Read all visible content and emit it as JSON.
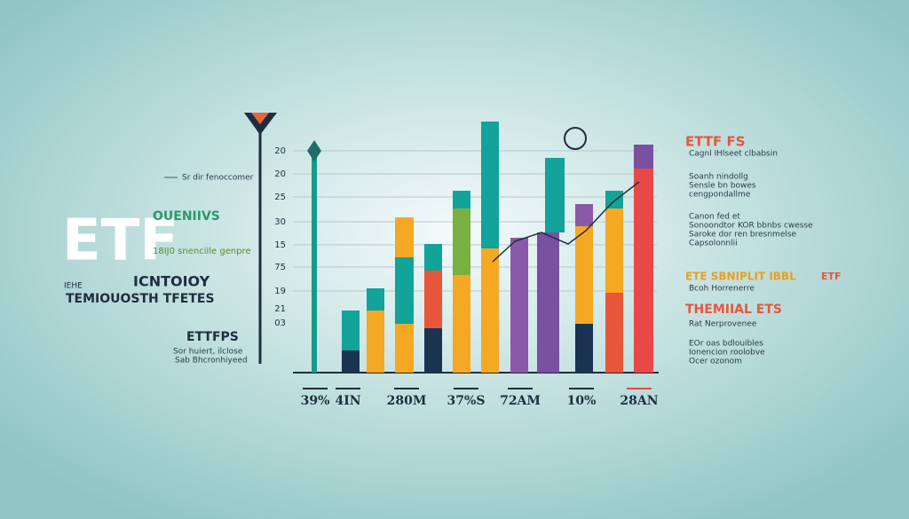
{
  "left": {
    "caption": "Sr dir fenoccomer",
    "logo": "ETF",
    "heading": "OUENIIVS",
    "subheading": "18IJ0 snencille genpre",
    "small": "IEHE",
    "title_1": "ICNTOIOY",
    "title_2": "TEMIOUOSTH TFETES",
    "section": "ETTFPS",
    "note_1": "Sor huiert, ilclose",
    "note_2": "Sab Bhcronhiyeed"
  },
  "axis_labels": [
    "20",
    "20",
    "25",
    "30",
    "15",
    "75",
    "19",
    "21",
    "03"
  ],
  "bottom_labels": [
    "39%",
    "4IN",
    "280M",
    "37%S",
    "72AM",
    "10%",
    "28AN"
  ],
  "right": {
    "title": "ETTF FS",
    "subtitle": "Cagnl IHlseet clbabsin",
    "block_1": [
      "Soanh nindollg",
      "Sensle bn bowes",
      "cengpondallme"
    ],
    "block_2": [
      "Canon fed et",
      "Sonoondtor KOR bbnbs cwesse",
      "Saroke dor ren bresnmelse",
      "Capsolonnlii"
    ],
    "heading_2": "ETE SBNIPLIT IBBL",
    "heading_2_tag": "ETF",
    "line_2": "Bcoh Horrenerre",
    "heading_3": "THEMIIAL ETS",
    "line_3": "Rat Nerprovenee",
    "block_3": [
      "EOr oas bdlouibles",
      "Ionencion roolobve",
      "Ocer ozonom"
    ]
  }
}
